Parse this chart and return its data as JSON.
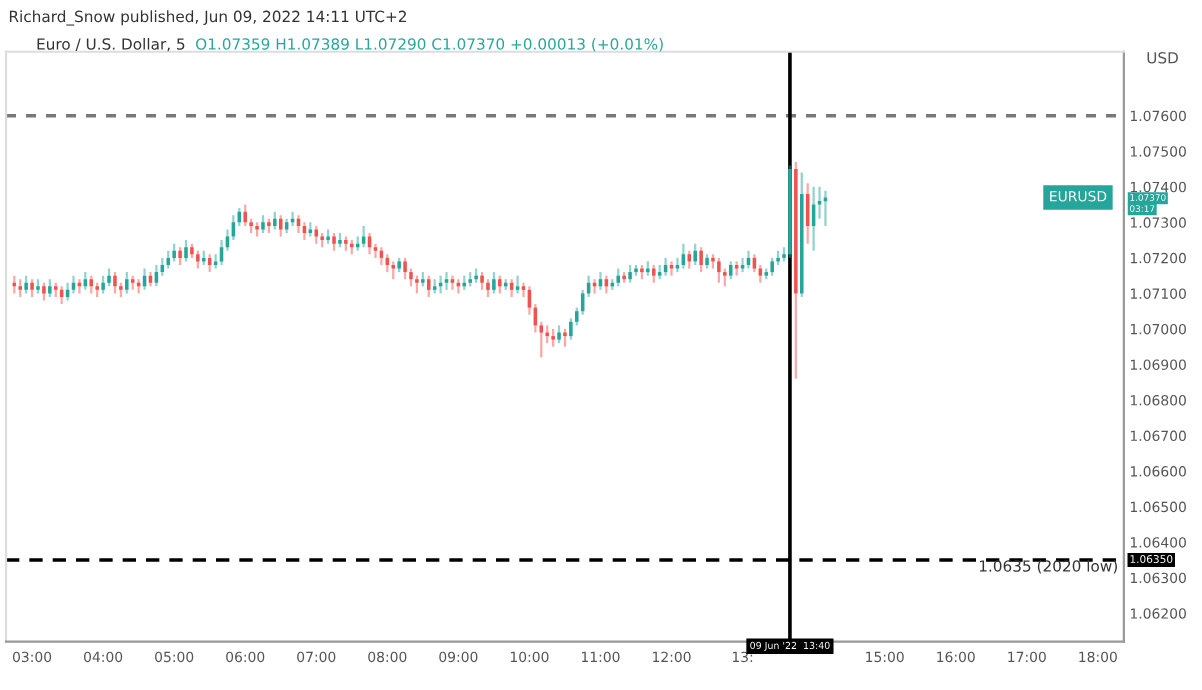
{
  "chart_data": {
    "type": "candlestick",
    "title": "Richard_Snow published, Jun 09, 2022 14:11 UTC+2",
    "subtitle": "Euro / U.S. Dollar, 5",
    "ylabel": "USD",
    "annotations": [
      "O1.07359 H1.07389 L1.07290 C1.07370 +0.00013 (+0.01%)",
      {
        "text": "EURUSD",
        "y": 1.0737
      },
      "1.07370",
      "03:17",
      "1.0635 (2020 low)"
    ],
    "colors": [
      "#ef5350",
      "#ef5350",
      "#26a69a",
      "#ef5350",
      "#26a69a",
      "#ef5350",
      "#26a69a",
      "#ef5350",
      "#ef5350",
      "#26a69a",
      "#26a69a",
      "#ef5350",
      "#26a69a",
      "#ef5350",
      "#ef5350",
      "#26a69a",
      "#26a69a",
      "#ef5350",
      "#ef5350",
      "#26a69a",
      "#ef5350",
      "#ef5350",
      "#26a69a",
      "#ef5350",
      "#26a69a",
      "#26a69a",
      "#26a69a",
      "#26a69a",
      "#ef5350",
      "#26a69a",
      "#ef5350",
      "#ef5350",
      "#26a69a",
      "#ef5350",
      "#26a69a",
      "#26a69a",
      "#26a69a",
      "#26a69a",
      "#26a69a",
      "#ef5350",
      "#ef5350",
      "#ef5350",
      "#26a69a",
      "#ef5350",
      "#26a69a",
      "#ef5350",
      "#26a69a",
      "#26a69a",
      "#ef5350",
      "#ef5350",
      "#26a69a",
      "#ef5350",
      "#ef5350",
      "#26a69a",
      "#ef5350",
      "#26a69a",
      "#ef5350",
      "#ef5350",
      "#26a69a",
      "#26a69a",
      "#ef5350",
      "#ef5350",
      "#ef5350",
      "#ef5350",
      "#ef5350",
      "#26a69a",
      "#ef5350",
      "#ef5350",
      "#ef5350",
      "#26a69a",
      "#ef5350",
      "#26a69a",
      "#26a69a",
      "#26a69a",
      "#ef5350",
      "#ef5350",
      "#26a69a",
      "#26a69a",
      "#26a69a",
      "#ef5350",
      "#ef5350",
      "#26a69a",
      "#ef5350",
      "#26a69a",
      "#ef5350",
      "#26a69a",
      "#ef5350",
      "#ef5350",
      "#ef5350",
      "#ef5350",
      "#ef5350",
      "#ef5350",
      "#26a69a",
      "#ef5350",
      "#26a69a",
      "#26a69a",
      "#26a69a",
      "#26a69a",
      "#ef5350",
      "#26a69a",
      "#ef5350",
      "#26a69a",
      "#26a69a",
      "#ef5350",
      "#26a69a",
      "#26a69a",
      "#ef5350",
      "#26a69a",
      "#ef5350",
      "#26a69a",
      "#26a69a",
      "#ef5350",
      "#26a69a",
      "#26a69a",
      "#ef5350",
      "#26a69a",
      "#ef5350",
      "#26a69a",
      "#ef5350",
      "#ef5350",
      "#ef5350",
      "#26a69a",
      "#ef5350",
      "#26a69a",
      "#26a69a",
      "#ef5350",
      "#ef5350",
      "#26a69a",
      "#26a69a",
      "#26a69a",
      "#26a69a",
      "#26a69a",
      "#ef5350",
      "#26a69a",
      "#ef5350",
      "#26a69a",
      "#26a69a",
      "#26a69a"
    ],
    "xlim": [
      "2022-06-09T02:38",
      "2022-06-09T18:22"
    ],
    "xticks": [
      {
        "value": "2022-06-09T03:00",
        "label": "03:00"
      },
      {
        "value": "2022-06-09T04:00",
        "label": "04:00"
      },
      {
        "value": "2022-06-09T05:00",
        "label": "05:00"
      },
      {
        "value": "2022-06-09T06:00",
        "label": "06:00"
      },
      {
        "value": "2022-06-09T07:00",
        "label": "07:00"
      },
      {
        "value": "2022-06-09T08:00",
        "label": "08:00"
      },
      {
        "value": "2022-06-09T09:00",
        "label": "09:00"
      },
      {
        "value": "2022-06-09T10:00",
        "label": "10:00"
      },
      {
        "value": "2022-06-09T11:00",
        "label": "11:00"
      },
      {
        "value": "2022-06-09T12:00",
        "label": "12:00"
      },
      {
        "value": "2022-06-09T13:00",
        "label": "13:"
      },
      {
        "value": "2022-06-09T15:00",
        "label": "15:00"
      },
      {
        "value": "2022-06-09T16:00",
        "label": "16:00"
      },
      {
        "value": "2022-06-09T17:00",
        "label": "17:00"
      },
      {
        "value": "2022-06-09T18:00",
        "label": "18:00"
      }
    ],
    "ylim": [
      1.0612,
      1.0778
    ],
    "yticks": [
      {
        "value": 1.062,
        "label": "1.06200"
      },
      {
        "value": 1.063,
        "label": "1.06300"
      },
      {
        "value": 1.064,
        "label": "1.06400"
      },
      {
        "value": 1.065,
        "label": "1.06500"
      },
      {
        "value": 1.066,
        "label": "1.06600"
      },
      {
        "value": 1.067,
        "label": "1.06700"
      },
      {
        "value": 1.068,
        "label": "1.06800"
      },
      {
        "value": 1.069,
        "label": "1.06900"
      },
      {
        "value": 1.07,
        "label": "1.07000"
      },
      {
        "value": 1.071,
        "label": "1.07100"
      },
      {
        "value": 1.072,
        "label": "1.07200"
      },
      {
        "value": 1.073,
        "label": "1.07300"
      },
      {
        "value": 1.074,
        "label": "1.07400"
      },
      {
        "value": 1.075,
        "label": "1.07500"
      },
      {
        "value": 1.076,
        "label": "1.07600"
      }
    ],
    "grid": false,
    "ref_lines": [
      {
        "axis": "y",
        "value": 1.0635,
        "label": "1.06350",
        "color": "#000000",
        "line_style": "dashed"
      },
      {
        "axis": "y",
        "value": 1.076,
        "color": "#787878",
        "line_style": "dotted"
      },
      {
        "axis": "x",
        "value": "2022-06-09T13:40",
        "label": "09 Jun '22  13:40",
        "color": "#000000",
        "line_style": "solid"
      }
    ],
    "x": [
      "2022-06-09T02:45",
      "2022-06-09T02:50",
      "2022-06-09T02:55",
      "2022-06-09T03:00",
      "2022-06-09T03:05",
      "2022-06-09T03:10",
      "2022-06-09T03:15",
      "2022-06-09T03:20",
      "2022-06-09T03:25",
      "2022-06-09T03:30",
      "2022-06-09T03:35",
      "2022-06-09T03:40",
      "2022-06-09T03:45",
      "2022-06-09T03:50",
      "2022-06-09T03:55",
      "2022-06-09T04:00",
      "2022-06-09T04:05",
      "2022-06-09T04:10",
      "2022-06-09T04:15",
      "2022-06-09T04:20",
      "2022-06-09T04:25",
      "2022-06-09T04:30",
      "2022-06-09T04:35",
      "2022-06-09T04:40",
      "2022-06-09T04:45",
      "2022-06-09T04:50",
      "2022-06-09T04:55",
      "2022-06-09T05:00",
      "2022-06-09T05:05",
      "2022-06-09T05:10",
      "2022-06-09T05:15",
      "2022-06-09T05:20",
      "2022-06-09T05:25",
      "2022-06-09T05:30",
      "2022-06-09T05:35",
      "2022-06-09T05:40",
      "2022-06-09T05:45",
      "2022-06-09T05:50",
      "2022-06-09T05:55",
      "2022-06-09T06:00",
      "2022-06-09T06:05",
      "2022-06-09T06:10",
      "2022-06-09T06:15",
      "2022-06-09T06:20",
      "2022-06-09T06:25",
      "2022-06-09T06:30",
      "2022-06-09T06:35",
      "2022-06-09T06:40",
      "2022-06-09T06:45",
      "2022-06-09T06:50",
      "2022-06-09T06:55",
      "2022-06-09T07:00",
      "2022-06-09T07:05",
      "2022-06-09T07:10",
      "2022-06-09T07:15",
      "2022-06-09T07:20",
      "2022-06-09T07:25",
      "2022-06-09T07:30",
      "2022-06-09T07:35",
      "2022-06-09T07:40",
      "2022-06-09T07:45",
      "2022-06-09T07:50",
      "2022-06-09T07:55",
      "2022-06-09T08:00",
      "2022-06-09T08:05",
      "2022-06-09T08:10",
      "2022-06-09T08:15",
      "2022-06-09T08:20",
      "2022-06-09T08:25",
      "2022-06-09T08:30",
      "2022-06-09T08:35",
      "2022-06-09T08:40",
      "2022-06-09T08:45",
      "2022-06-09T08:50",
      "2022-06-09T08:55",
      "2022-06-09T09:00",
      "2022-06-09T09:05",
      "2022-06-09T09:10",
      "2022-06-09T09:15",
      "2022-06-09T09:20",
      "2022-06-09T09:25",
      "2022-06-09T09:30",
      "2022-06-09T09:35",
      "2022-06-09T09:40",
      "2022-06-09T09:45",
      "2022-06-09T09:50",
      "2022-06-09T09:55",
      "2022-06-09T10:00",
      "2022-06-09T10:05",
      "2022-06-09T10:10",
      "2022-06-09T10:15",
      "2022-06-09T10:20",
      "2022-06-09T10:25",
      "2022-06-09T10:30",
      "2022-06-09T10:35",
      "2022-06-09T10:40",
      "2022-06-09T10:45",
      "2022-06-09T10:50",
      "2022-06-09T10:55",
      "2022-06-09T11:00",
      "2022-06-09T11:05",
      "2022-06-09T11:10",
      "2022-06-09T11:15",
      "2022-06-09T11:20",
      "2022-06-09T11:25",
      "2022-06-09T11:30",
      "2022-06-09T11:35",
      "2022-06-09T11:40",
      "2022-06-09T11:45",
      "2022-06-09T11:50",
      "2022-06-09T11:55",
      "2022-06-09T12:00",
      "2022-06-09T12:05",
      "2022-06-09T12:10",
      "2022-06-09T12:15",
      "2022-06-09T12:20",
      "2022-06-09T12:25",
      "2022-06-09T12:30",
      "2022-06-09T12:35",
      "2022-06-09T12:40",
      "2022-06-09T12:45",
      "2022-06-09T12:50",
      "2022-06-09T12:55",
      "2022-06-09T13:00",
      "2022-06-09T13:05",
      "2022-06-09T13:10",
      "2022-06-09T13:15",
      "2022-06-09T13:20",
      "2022-06-09T13:25",
      "2022-06-09T13:30",
      "2022-06-09T13:35",
      "2022-06-09T13:40",
      "2022-06-09T13:45",
      "2022-06-09T13:50",
      "2022-06-09T13:55",
      "2022-06-09T14:00",
      "2022-06-09T14:05",
      "2022-06-09T14:10"
    ],
    "ohlc": [
      [
        1.0713,
        1.0715,
        1.071,
        1.0712
      ],
      [
        1.0712,
        1.0714,
        1.0709,
        1.0711
      ],
      [
        1.0711,
        1.0715,
        1.071,
        1.0713
      ],
      [
        1.0713,
        1.0714,
        1.0709,
        1.0711
      ],
      [
        1.0711,
        1.0714,
        1.071,
        1.0712
      ],
      [
        1.0712,
        1.0713,
        1.0708,
        1.071
      ],
      [
        1.071,
        1.0714,
        1.0709,
        1.0712
      ],
      [
        1.0712,
        1.0713,
        1.0709,
        1.0711
      ],
      [
        1.0711,
        1.0712,
        1.0707,
        1.0709
      ],
      [
        1.0709,
        1.0713,
        1.0708,
        1.0711
      ],
      [
        1.0711,
        1.0715,
        1.071,
        1.0713
      ],
      [
        1.0713,
        1.0714,
        1.071,
        1.0712
      ],
      [
        1.0712,
        1.0716,
        1.0711,
        1.0714
      ],
      [
        1.0714,
        1.0715,
        1.071,
        1.0712
      ],
      [
        1.0712,
        1.0713,
        1.0709,
        1.0711
      ],
      [
        1.0711,
        1.0715,
        1.071,
        1.0713
      ],
      [
        1.0713,
        1.0717,
        1.0712,
        1.0715
      ],
      [
        1.0715,
        1.0716,
        1.071,
        1.0712
      ],
      [
        1.0712,
        1.0713,
        1.0709,
        1.0711
      ],
      [
        1.0711,
        1.0716,
        1.071,
        1.0714
      ],
      [
        1.0714,
        1.0715,
        1.0711,
        1.0713
      ],
      [
        1.0713,
        1.0714,
        1.071,
        1.0712
      ],
      [
        1.0712,
        1.0717,
        1.0711,
        1.0715
      ],
      [
        1.0715,
        1.0716,
        1.0712,
        1.0713
      ],
      [
        1.0713,
        1.0718,
        1.0712,
        1.0716
      ],
      [
        1.0716,
        1.072,
        1.0715,
        1.0718
      ],
      [
        1.0718,
        1.0722,
        1.0717,
        1.072
      ],
      [
        1.072,
        1.0724,
        1.0719,
        1.0722
      ],
      [
        1.0722,
        1.0723,
        1.0718,
        1.072
      ],
      [
        1.072,
        1.0725,
        1.0719,
        1.0723
      ],
      [
        1.0723,
        1.0724,
        1.072,
        1.0721
      ],
      [
        1.0721,
        1.0722,
        1.0717,
        1.0719
      ],
      [
        1.0719,
        1.0722,
        1.0718,
        1.072
      ],
      [
        1.072,
        1.0721,
        1.0716,
        1.0718
      ],
      [
        1.0718,
        1.0721,
        1.0717,
        1.0719
      ],
      [
        1.0719,
        1.0725,
        1.0718,
        1.0723
      ],
      [
        1.0723,
        1.0728,
        1.0722,
        1.0726
      ],
      [
        1.0726,
        1.0732,
        1.0725,
        1.073
      ],
      [
        1.073,
        1.0734,
        1.0729,
        1.0733
      ],
      [
        1.0733,
        1.0735,
        1.0729,
        1.073
      ],
      [
        1.073,
        1.0731,
        1.0727,
        1.0729
      ],
      [
        1.0729,
        1.073,
        1.0726,
        1.0728
      ],
      [
        1.0728,
        1.0732,
        1.0727,
        1.073
      ],
      [
        1.073,
        1.0731,
        1.0727,
        1.0729
      ],
      [
        1.0729,
        1.0733,
        1.0728,
        1.0731
      ],
      [
        1.0731,
        1.0732,
        1.0726,
        1.0728
      ],
      [
        1.0728,
        1.0731,
        1.0727,
        1.073
      ],
      [
        1.073,
        1.0733,
        1.0729,
        1.0731
      ],
      [
        1.0731,
        1.0732,
        1.0727,
        1.0729
      ],
      [
        1.0729,
        1.073,
        1.0725,
        1.0727
      ],
      [
        1.0727,
        1.073,
        1.0726,
        1.0728
      ],
      [
        1.0728,
        1.0729,
        1.0724,
        1.0726
      ],
      [
        1.0726,
        1.0727,
        1.0723,
        1.0725
      ],
      [
        1.0725,
        1.0728,
        1.0724,
        1.0726
      ],
      [
        1.0726,
        1.0727,
        1.0722,
        1.0724
      ],
      [
        1.0724,
        1.0727,
        1.0723,
        1.0725
      ],
      [
        1.0725,
        1.0726,
        1.0722,
        1.0724
      ],
      [
        1.0724,
        1.0725,
        1.0721,
        1.0723
      ],
      [
        1.0723,
        1.0726,
        1.0722,
        1.0724
      ],
      [
        1.0724,
        1.0729,
        1.0723,
        1.0726
      ],
      [
        1.0726,
        1.0727,
        1.0721,
        1.0723
      ],
      [
        1.0723,
        1.0724,
        1.072,
        1.0722
      ],
      [
        1.0722,
        1.0723,
        1.0718,
        1.072
      ],
      [
        1.072,
        1.0721,
        1.0716,
        1.0718
      ],
      [
        1.0718,
        1.0719,
        1.0714,
        1.0717
      ],
      [
        1.0717,
        1.072,
        1.0716,
        1.0719
      ],
      [
        1.0719,
        1.072,
        1.0714,
        1.0716
      ],
      [
        1.0716,
        1.0717,
        1.0712,
        1.0714
      ],
      [
        1.0714,
        1.0715,
        1.071,
        1.0713
      ],
      [
        1.0713,
        1.0716,
        1.0712,
        1.0714
      ],
      [
        1.0714,
        1.0715,
        1.0709,
        1.0711
      ],
      [
        1.0711,
        1.0714,
        1.071,
        1.0712
      ],
      [
        1.0712,
        1.0715,
        1.071,
        1.0713
      ],
      [
        1.0713,
        1.0716,
        1.0711,
        1.0714
      ],
      [
        1.0714,
        1.0715,
        1.0711,
        1.0713
      ],
      [
        1.0713,
        1.0714,
        1.071,
        1.0712
      ],
      [
        1.0712,
        1.0715,
        1.0711,
        1.0713
      ],
      [
        1.0713,
        1.0716,
        1.0712,
        1.0714
      ],
      [
        1.0714,
        1.0717,
        1.0713,
        1.0715
      ],
      [
        1.0715,
        1.0716,
        1.0711,
        1.0713
      ],
      [
        1.0713,
        1.0714,
        1.0709,
        1.0711
      ],
      [
        1.0711,
        1.0716,
        1.071,
        1.0714
      ],
      [
        1.0714,
        1.0715,
        1.071,
        1.0712
      ],
      [
        1.0712,
        1.0714,
        1.0711,
        1.0713
      ],
      [
        1.0713,
        1.0714,
        1.0709,
        1.0711
      ],
      [
        1.0711,
        1.0715,
        1.071,
        1.0712
      ],
      [
        1.0712,
        1.0713,
        1.0709,
        1.0711
      ],
      [
        1.0711,
        1.0712,
        1.0704,
        1.0706
      ],
      [
        1.0706,
        1.0707,
        1.0699,
        1.0701
      ],
      [
        1.0701,
        1.0702,
        1.0692,
        1.0699
      ],
      [
        1.0699,
        1.0701,
        1.0696,
        1.0698
      ],
      [
        1.0698,
        1.07,
        1.0695,
        1.0697
      ],
      [
        1.0697,
        1.0701,
        1.0696,
        1.0699
      ],
      [
        1.0699,
        1.07,
        1.0695,
        1.0698
      ],
      [
        1.0698,
        1.0703,
        1.0697,
        1.0702
      ],
      [
        1.0702,
        1.0706,
        1.0701,
        1.0705
      ],
      [
        1.0705,
        1.0711,
        1.0704,
        1.071
      ],
      [
        1.071,
        1.0715,
        1.0709,
        1.0713
      ],
      [
        1.0713,
        1.0714,
        1.071,
        1.0712
      ],
      [
        1.0712,
        1.0716,
        1.0711,
        1.0714
      ],
      [
        1.0714,
        1.0715,
        1.071,
        1.0712
      ],
      [
        1.0712,
        1.0714,
        1.0711,
        1.0713
      ],
      [
        1.0713,
        1.0717,
        1.0712,
        1.0715
      ],
      [
        1.0715,
        1.0716,
        1.0713,
        1.0714
      ],
      [
        1.0714,
        1.0718,
        1.0713,
        1.0716
      ],
      [
        1.0716,
        1.0718,
        1.0715,
        1.0717
      ],
      [
        1.0717,
        1.0718,
        1.0714,
        1.0716
      ],
      [
        1.0716,
        1.0719,
        1.0715,
        1.0717
      ],
      [
        1.0717,
        1.0718,
        1.0713,
        1.0715
      ],
      [
        1.0715,
        1.0718,
        1.0714,
        1.0716
      ],
      [
        1.0716,
        1.072,
        1.0715,
        1.0718
      ],
      [
        1.0718,
        1.0719,
        1.0715,
        1.0717
      ],
      [
        1.0717,
        1.072,
        1.0716,
        1.0718
      ],
      [
        1.0718,
        1.0724,
        1.0717,
        1.0721
      ],
      [
        1.0721,
        1.0722,
        1.0717,
        1.0719
      ],
      [
        1.0719,
        1.0724,
        1.0718,
        1.0722
      ],
      [
        1.0722,
        1.0723,
        1.0716,
        1.0718
      ],
      [
        1.0718,
        1.0721,
        1.0717,
        1.072
      ],
      [
        1.072,
        1.0721,
        1.0717,
        1.0719
      ],
      [
        1.0719,
        1.072,
        1.0713,
        1.0716
      ],
      [
        1.0716,
        1.0717,
        1.0712,
        1.0715
      ],
      [
        1.0715,
        1.0719,
        1.0714,
        1.0718
      ],
      [
        1.0718,
        1.0719,
        1.0715,
        1.0717
      ],
      [
        1.0717,
        1.072,
        1.0716,
        1.0718
      ],
      [
        1.0718,
        1.0722,
        1.0717,
        1.072
      ],
      [
        1.072,
        1.0721,
        1.0716,
        1.0717
      ],
      [
        1.0717,
        1.0718,
        1.0713,
        1.0715
      ],
      [
        1.0715,
        1.0717,
        1.0714,
        1.0716
      ],
      [
        1.0716,
        1.072,
        1.0715,
        1.0719
      ],
      [
        1.0719,
        1.0722,
        1.0718,
        1.072
      ],
      [
        1.072,
        1.0723,
        1.0719,
        1.0721
      ],
      [
        1.0721,
        1.0746,
        1.072,
        1.0745
      ],
      [
        1.0745,
        1.0747,
        1.0686,
        1.071
      ],
      [
        1.071,
        1.0744,
        1.0709,
        1.0738
      ],
      [
        1.0738,
        1.0741,
        1.0724,
        1.0729
      ],
      [
        1.0729,
        1.074,
        1.0722,
        1.0735
      ],
      [
        1.0735,
        1.074,
        1.0731,
        1.0736
      ],
      [
        1.07359,
        1.07389,
        1.0729,
        1.0737
      ]
    ]
  }
}
